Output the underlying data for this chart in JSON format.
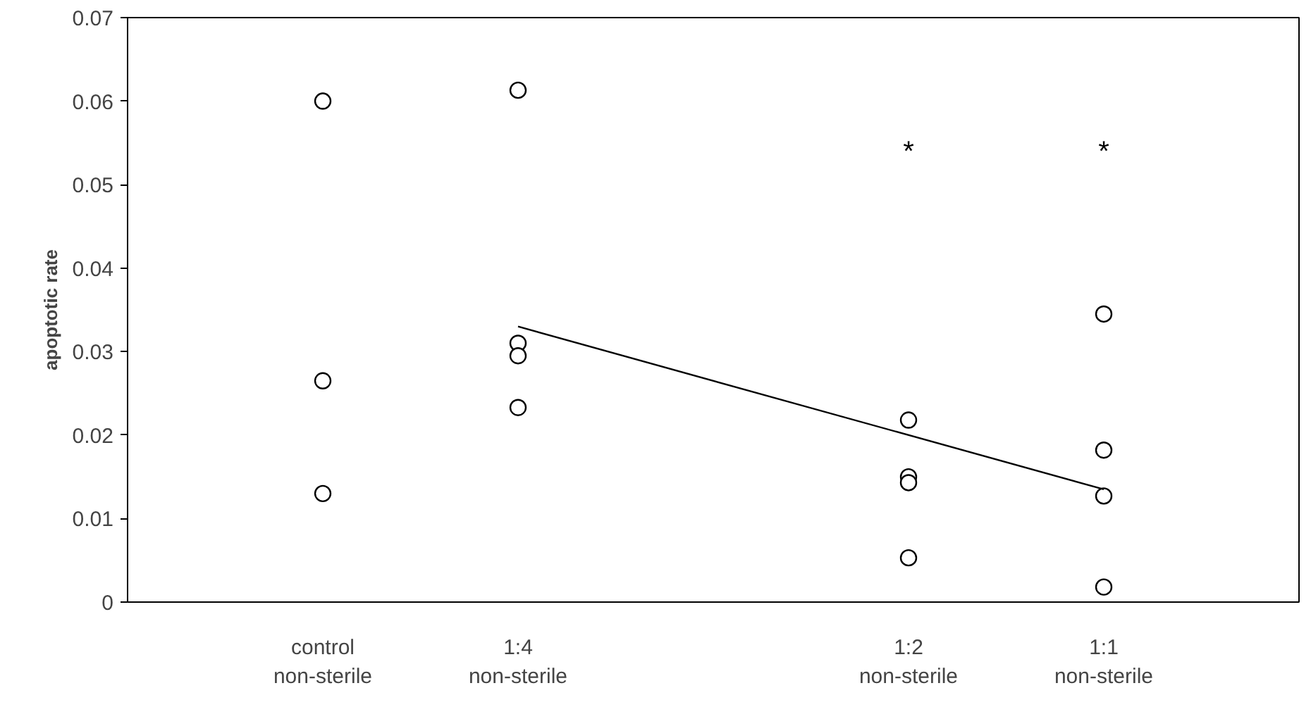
{
  "chart_data": {
    "type": "scatter",
    "ylabel": "apoptotic rate",
    "categories": [
      "control\nnon-sterile",
      "1:4\nnon-sterile",
      null,
      "1:2\nnon-sterile",
      "1:1\nnon-sterile"
    ],
    "ylim": [
      0,
      0.07
    ],
    "yticks": [
      0,
      0.01,
      0.02,
      0.03,
      0.04,
      0.05,
      0.06,
      0.07
    ],
    "grid": false,
    "series": [
      {
        "marker": "circle",
        "color": "#000000",
        "x": [
          "control\nnon-sterile",
          "control\nnon-sterile",
          "control\nnon-sterile",
          "1:4\nnon-sterile",
          "1:4\nnon-sterile",
          "1:4\nnon-sterile",
          "1:4\nnon-sterile",
          "1:2\nnon-sterile",
          "1:2\nnon-sterile",
          "1:2\nnon-sterile",
          "1:2\nnon-sterile",
          "1:1\nnon-sterile",
          "1:1\nnon-sterile",
          "1:1\nnon-sterile",
          "1:1\nnon-sterile"
        ],
        "values": [
          0.06,
          0.0265,
          0.013,
          0.0613,
          0.031,
          0.0295,
          0.0233,
          0.0218,
          0.015,
          0.0143,
          0.0053,
          0.0345,
          0.0182,
          0.0127,
          0.0018
        ]
      },
      {
        "type": "line",
        "color": "#000000",
        "line_style": "solid",
        "x": [
          "1:4\nnon-sterile",
          "1:1\nnon-sterile"
        ],
        "values": [
          0.033,
          0.0135
        ]
      }
    ],
    "annotations": [
      "*",
      "*"
    ]
  }
}
